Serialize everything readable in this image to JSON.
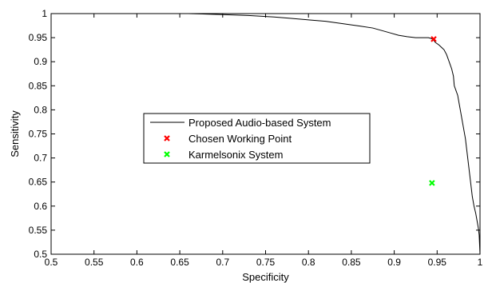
{
  "chart_data": {
    "type": "line",
    "xlabel": "Specificity",
    "ylabel": "Sensitivity",
    "xlim": [
      0.5,
      1.0
    ],
    "ylim": [
      0.5,
      1.0
    ],
    "xticks": [
      "0.5",
      "0.55",
      "0.6",
      "0.65",
      "0.7",
      "0.75",
      "0.8",
      "0.85",
      "0.9",
      "0.95",
      "1"
    ],
    "yticks": [
      "0.5",
      "0.55",
      "0.6",
      "0.65",
      "0.7",
      "0.75",
      "0.8",
      "0.85",
      "0.9",
      "0.95",
      "1"
    ],
    "grid": false,
    "legend_position": "center-left",
    "series": [
      {
        "name": "Proposed Audio-based System",
        "kind": "line",
        "color": "#000000",
        "x": [
          0.5,
          0.66,
          0.7,
          0.73,
          0.76,
          0.78,
          0.8,
          0.82,
          0.84,
          0.86,
          0.875,
          0.885,
          0.895,
          0.905,
          0.915,
          0.925,
          0.935,
          0.94,
          0.945,
          0.948,
          0.952,
          0.955,
          0.958,
          0.961,
          0.964,
          0.967,
          0.969,
          0.97,
          0.972,
          0.974,
          0.976,
          0.978,
          0.98,
          0.983,
          0.985,
          0.987,
          0.989,
          0.991,
          0.993,
          0.995,
          0.996,
          0.997,
          0.998,
          0.999,
          1.0
        ],
        "y": [
          1.0,
          1.0,
          0.998,
          0.996,
          0.993,
          0.99,
          0.987,
          0.984,
          0.979,
          0.974,
          0.97,
          0.965,
          0.96,
          0.955,
          0.952,
          0.95,
          0.95,
          0.95,
          0.947,
          0.94,
          0.935,
          0.93,
          0.925,
          0.915,
          0.9,
          0.885,
          0.87,
          0.85,
          0.84,
          0.83,
          0.81,
          0.79,
          0.77,
          0.74,
          0.71,
          0.68,
          0.65,
          0.62,
          0.6,
          0.585,
          0.575,
          0.565,
          0.555,
          0.54,
          0.5
        ]
      },
      {
        "name": "Chosen Working Point",
        "kind": "marker",
        "marker": "x",
        "color": "#ff0000",
        "x": [
          0.946
        ],
        "y": [
          0.947
        ]
      },
      {
        "name": "Karmelsonix System",
        "kind": "marker",
        "marker": "x",
        "color": "#00ff00",
        "x": [
          0.944
        ],
        "y": [
          0.648
        ]
      }
    ]
  }
}
